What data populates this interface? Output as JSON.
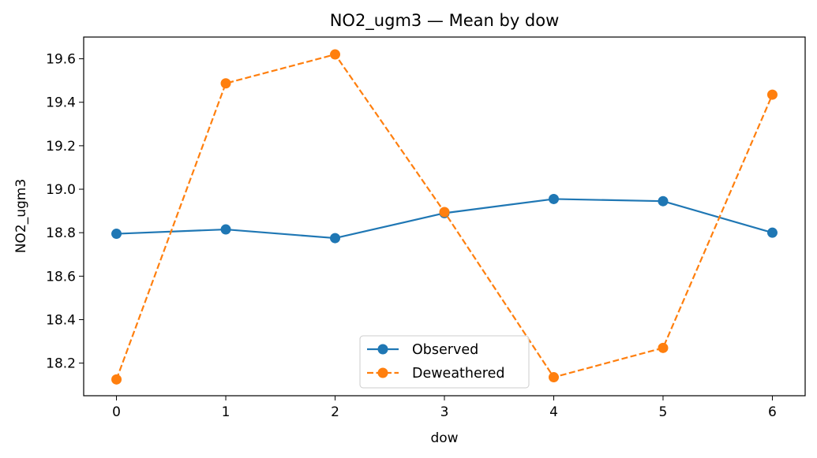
{
  "chart_data": {
    "type": "line",
    "title": "NO2_ugm3 — Mean by dow",
    "xlabel": "dow",
    "ylabel": "NO2_ugm3",
    "x": [
      0,
      1,
      2,
      3,
      4,
      5,
      6
    ],
    "xticks": [
      "0",
      "1",
      "2",
      "3",
      "4",
      "5",
      "6"
    ],
    "xlim": [
      -0.3,
      6.3
    ],
    "yticks": [
      "18.2",
      "18.4",
      "18.6",
      "18.8",
      "19.0",
      "19.2",
      "19.4",
      "19.6"
    ],
    "ylim": [
      18.05,
      19.7
    ],
    "grid": false,
    "legend_position": "lower center",
    "series": [
      {
        "name": "Observed",
        "values": [
          18.795,
          18.815,
          18.775,
          18.89,
          18.955,
          18.945,
          18.8
        ],
        "color": "#1f77b4",
        "linestyle": "solid",
        "marker": "circle"
      },
      {
        "name": "Deweathered",
        "values": [
          18.125,
          19.487,
          19.62,
          18.895,
          18.135,
          18.27,
          19.435
        ],
        "color": "#ff7f0e",
        "linestyle": "dashed",
        "marker": "circle"
      }
    ]
  }
}
